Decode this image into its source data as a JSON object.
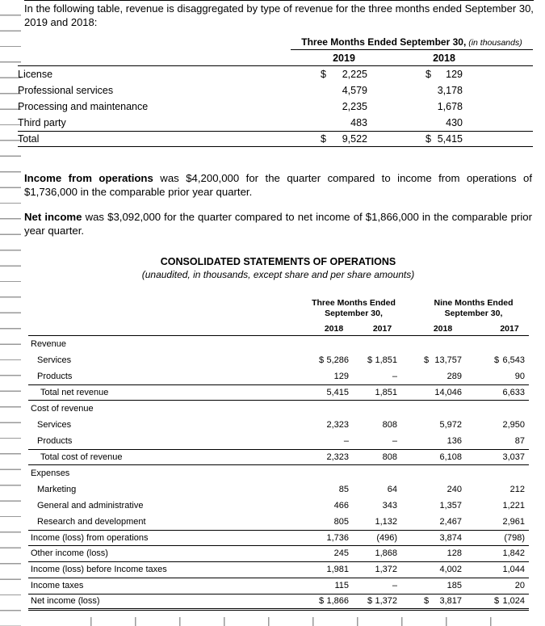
{
  "intro": "In the following table, revenue is disaggregated by type of revenue for the three months ended September 30, 2019 and 2018:",
  "table1": {
    "group_header": "Three Months Ended September 30,",
    "group_note": " (in thousands)",
    "years": [
      "2019",
      "2018"
    ],
    "rows": [
      {
        "label": "License",
        "v": [
          "2,225",
          "129"
        ],
        "cur": true
      },
      {
        "label": "Professional services",
        "v": [
          "4,579",
          "3,178"
        ]
      },
      {
        "label": "Processing and maintenance",
        "v": [
          "2,235",
          "1,678"
        ]
      },
      {
        "label": "Third party",
        "v": [
          "483",
          "430"
        ]
      },
      {
        "label": "Total",
        "v": [
          "9,522",
          "5,415"
        ],
        "cur": true,
        "la": true,
        "lb": true
      }
    ]
  },
  "para_income_ops": {
    "bold": "Income from operations",
    "rest": " was $4,200,000 for the quarter compared to income from operations of $1,736,000 in the comparable prior year quarter."
  },
  "para_net_income": {
    "bold": "Net income",
    "rest": " was $3,092,000 for the quarter compared to net income of $1,866,000 in the comparable prior year quarter."
  },
  "statement": {
    "title": "CONSOLIDATED STATEMENTS OF OPERATIONS",
    "subtitle": "(unaudited, in thousands, except share and per share amounts)"
  },
  "table2": {
    "group_headers": [
      "Three Months Ended\nSeptember 30,",
      "Nine Months Ended\nSeptember 30,"
    ],
    "years": [
      "2018",
      "2017",
      "2018",
      "2017"
    ],
    "rows": [
      {
        "label": "Revenue"
      },
      {
        "label": "Services",
        "ind": 1,
        "v": [
          "5,286",
          "1,851",
          "13,757",
          "6,543"
        ],
        "cur": true
      },
      {
        "label": "Products",
        "ind": 1,
        "v": [
          "129",
          "–",
          "289",
          "90"
        ]
      },
      {
        "label": "Total net revenue",
        "ind": 2,
        "v": [
          "5,415",
          "1,851",
          "14,046",
          "6,633"
        ],
        "la": true,
        "lb": true
      },
      {
        "label": "Cost of revenue"
      },
      {
        "label": "Services",
        "ind": 1,
        "v": [
          "2,323",
          "808",
          "5,972",
          "2,950"
        ]
      },
      {
        "label": "Products",
        "ind": 1,
        "v": [
          "–",
          "–",
          "136",
          "87"
        ]
      },
      {
        "label": "Total cost of revenue",
        "ind": 2,
        "v": [
          "2,323",
          "808",
          "6,108",
          "3,037"
        ],
        "la": true,
        "lb": true
      },
      {
        "label": "Expenses"
      },
      {
        "label": "Marketing",
        "ind": 1,
        "v": [
          "85",
          "64",
          "240",
          "212"
        ]
      },
      {
        "label": "General and administrative",
        "ind": 1,
        "v": [
          "466",
          "343",
          "1,357",
          "1,221"
        ]
      },
      {
        "label": "Research and development",
        "ind": 1,
        "v": [
          "805",
          "1,132",
          "2,467",
          "2,961"
        ]
      },
      {
        "label": "Income (loss) from operations",
        "v": [
          "1,736",
          "(496)",
          "3,874",
          "(798)"
        ],
        "la": true,
        "lb": true
      },
      {
        "label": "Other income (loss)",
        "v": [
          "245",
          "1,868",
          "128",
          "1,842"
        ],
        "lb": true
      },
      {
        "label": "Income (loss) before Income taxes",
        "v": [
          "1,981",
          "1,372",
          "4,002",
          "1,044"
        ],
        "lb": true
      },
      {
        "label": "Income taxes",
        "v": [
          "115",
          "–",
          "185",
          "20"
        ],
        "lb": true
      },
      {
        "label": "Net income (loss)",
        "v": [
          "1,866",
          "1,372",
          "3,817",
          "1,024"
        ],
        "cur": true,
        "dlb": true
      }
    ]
  }
}
